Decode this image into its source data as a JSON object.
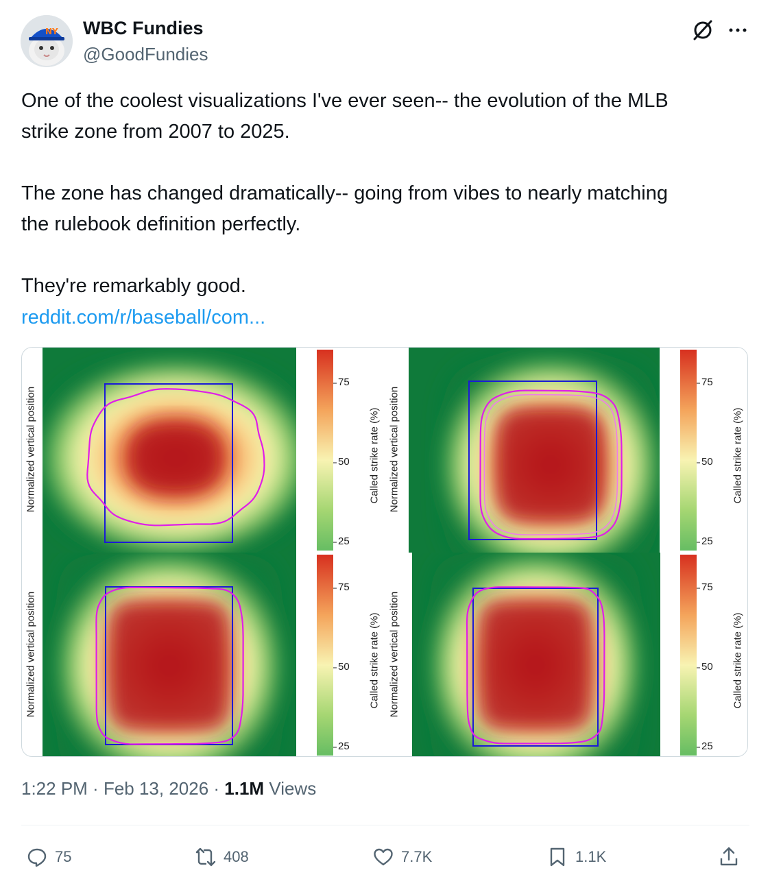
{
  "tweet": {
    "author_name": "WBC Fundies",
    "author_handle": "@GoodFundies",
    "paragraphs": [
      [
        "One of the coolest visualizations I've ever seen-- the evolution of the MLB",
        "strike zone from 2007 to 2025."
      ],
      [
        "The zone has changed dramatically-- going from vibes to nearly matching",
        "the rulebook definition perfectly."
      ],
      [
        "They're remarkably good."
      ]
    ],
    "link_text": "reddit.com/r/baseball/com...",
    "time": "1:22 PM",
    "date": "Feb 13, 2026",
    "separator": " · ",
    "views_count": "1.1M",
    "views_label": "Views"
  },
  "chart_panels": [
    {
      "ylabel": "Normalized vertical position",
      "colorbar_label": "Called strike rate (%)",
      "ticks": [
        "75",
        "50",
        "25"
      ]
    },
    {
      "ylabel": "Normalized vertical position",
      "colorbar_label": "Called strike rate (%)",
      "ticks": [
        "75",
        "50",
        "25"
      ]
    },
    {
      "ylabel": "Normalized vertical position",
      "colorbar_label": "Called strike rate (%)",
      "ticks": [
        "75",
        "50",
        "25"
      ]
    },
    {
      "ylabel": "Normalized vertical position",
      "colorbar_label": "Called strike rate (%)",
      "ticks": [
        "75",
        "50",
        "25"
      ]
    }
  ],
  "colors": {
    "accent": "#1d9bf0",
    "muted": "#536471",
    "heat_high": "#b3141c",
    "heat_low": "#0f7a3a",
    "zone_box": "#1a1ad6",
    "contour": "#e01ee8"
  },
  "actions": {
    "replies": "75",
    "reposts": "408",
    "likes": "7.7K",
    "bookmarks": "1.1K"
  },
  "icons": [
    "grok-icon",
    "more-icon",
    "reply-icon",
    "repost-icon",
    "like-icon",
    "bookmark-icon",
    "share-icon"
  ]
}
